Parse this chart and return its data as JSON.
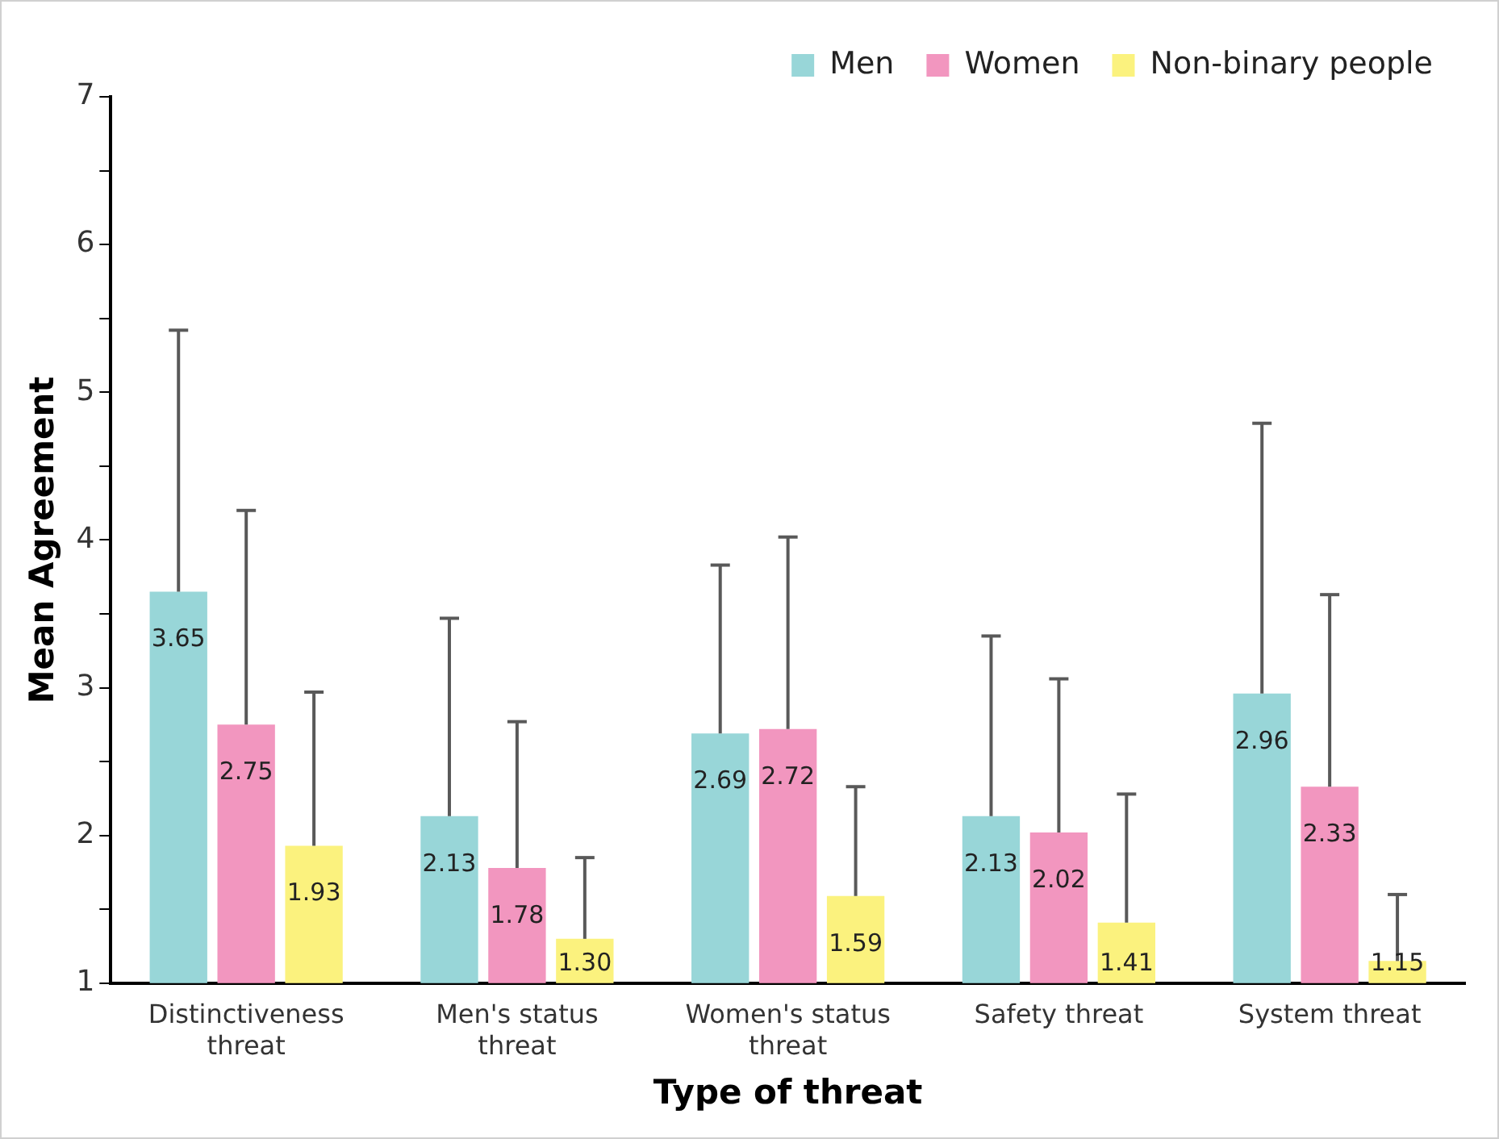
{
  "chart_data": {
    "type": "bar",
    "xlabel": "Type of threat",
    "ylabel": "Mean Agreement",
    "categories": [
      "Distinctiveness threat",
      "Men's status threat",
      "Women's status threat",
      "Safety threat",
      "System threat"
    ],
    "series": [
      {
        "name": "Men",
        "color": "#98d6d8",
        "values": [
          3.65,
          2.13,
          2.69,
          2.13,
          2.96
        ],
        "value_labels": [
          "3.65",
          "2.13",
          "2.69",
          "2.13",
          "2.96"
        ],
        "errors": [
          [
            3.65,
            5.42
          ],
          [
            2.13,
            3.47
          ],
          [
            2.69,
            3.83
          ],
          [
            2.13,
            3.35
          ],
          [
            2.96,
            4.79
          ]
        ]
      },
      {
        "name": "Women",
        "color": "#f296bf",
        "values": [
          2.75,
          1.78,
          2.72,
          2.02,
          2.33
        ],
        "value_labels": [
          "2.75",
          "1.78",
          "2.72",
          "2.02",
          "2.33"
        ],
        "errors": [
          [
            2.75,
            4.2
          ],
          [
            1.78,
            2.77
          ],
          [
            2.72,
            4.02
          ],
          [
            2.02,
            3.06
          ],
          [
            2.33,
            3.63
          ]
        ]
      },
      {
        "name": "Non-binary people",
        "color": "#fbf27e",
        "values": [
          1.93,
          1.3,
          1.59,
          1.41,
          1.15
        ],
        "value_labels": [
          "1.93",
          "1.30",
          "1.59",
          "1.41",
          "1.15"
        ],
        "errors": [
          [
            1.93,
            2.97
          ],
          [
            1.3,
            1.85
          ],
          [
            1.59,
            2.33
          ],
          [
            1.41,
            2.28
          ],
          [
            1.15,
            1.6
          ]
        ]
      }
    ],
    "ylim": [
      1,
      7
    ],
    "yticks": [
      1,
      {
        "value": 1.5,
        "label": null
      },
      2,
      {
        "value": 2.5,
        "label": null
      },
      3,
      {
        "value": 3.5,
        "label": null
      },
      4,
      {
        "value": 4.5,
        "label": null
      },
      5,
      {
        "value": 5.5,
        "label": null
      },
      6,
      {
        "value": 6.5,
        "label": null
      },
      7
    ],
    "legend": "top right",
    "grid": false
  }
}
